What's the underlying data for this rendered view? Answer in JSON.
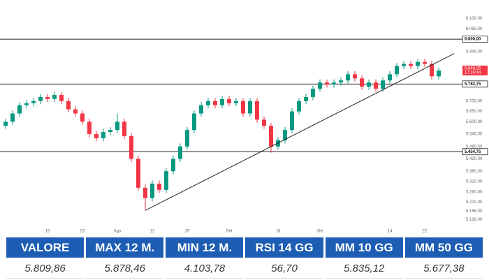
{
  "chart_data": {
    "type": "candlestick",
    "categories": [
      null,
      null,
      null,
      null,
      null,
      null,
      "15",
      null,
      null,
      null,
      null,
      "23",
      null,
      null,
      null,
      null,
      "Ago",
      null,
      null,
      null,
      null,
      "12",
      null,
      null,
      null,
      null,
      "20",
      null,
      null,
      null,
      null,
      null,
      "Set",
      null,
      null,
      null,
      null,
      null,
      null,
      "16",
      null,
      null,
      null,
      null,
      null,
      "Ott",
      null,
      null,
      null,
      null,
      null,
      null,
      null,
      null,
      null,
      "14",
      null,
      null,
      null,
      null,
      "22",
      null,
      null
    ],
    "open": [
      5580,
      5600,
      5640,
      5680,
      5690,
      5700,
      5720,
      5710,
      5730,
      5700,
      5660,
      5640,
      5600,
      5540,
      5520,
      5550,
      5560,
      5600,
      5530,
      5420,
      5280,
      5230,
      5300,
      5270,
      5360,
      5420,
      5480,
      5560,
      5640,
      5680,
      5700,
      5680,
      5710,
      5690,
      5700,
      5640,
      5700,
      5610,
      5580,
      5480,
      5510,
      5560,
      5650,
      5700,
      5720,
      5760,
      5790,
      5780,
      5790,
      5800,
      5830,
      5810,
      5770,
      5790,
      5760,
      5800,
      5830,
      5870,
      5880,
      5870,
      5890,
      5880,
      5820
    ],
    "high": [
      5615,
      5655,
      5695,
      5705,
      5715,
      5735,
      5735,
      5745,
      5745,
      5715,
      5675,
      5655,
      5615,
      5555,
      5565,
      5575,
      5640,
      5615,
      5545,
      5435,
      5295,
      5315,
      5315,
      5375,
      5435,
      5495,
      5575,
      5655,
      5695,
      5715,
      5715,
      5725,
      5725,
      5715,
      5715,
      5715,
      5715,
      5625,
      5595,
      5525,
      5575,
      5665,
      5715,
      5735,
      5775,
      5805,
      5805,
      5805,
      5815,
      5845,
      5845,
      5825,
      5805,
      5805,
      5815,
      5845,
      5885,
      5895,
      5895,
      5905,
      5905,
      5895,
      5863
    ],
    "low": [
      5565,
      5585,
      5625,
      5665,
      5675,
      5685,
      5695,
      5695,
      5685,
      5645,
      5625,
      5585,
      5525,
      5505,
      5505,
      5535,
      5545,
      5515,
      5405,
      5265,
      5170,
      5215,
      5255,
      5255,
      5345,
      5405,
      5465,
      5545,
      5625,
      5665,
      5665,
      5665,
      5675,
      5675,
      5625,
      5625,
      5595,
      5565,
      5450,
      5465,
      5495,
      5545,
      5635,
      5685,
      5705,
      5745,
      5765,
      5765,
      5775,
      5785,
      5795,
      5755,
      5755,
      5745,
      5745,
      5785,
      5815,
      5855,
      5855,
      5855,
      5865,
      5805,
      5805
    ],
    "close": [
      5600,
      5640,
      5680,
      5690,
      5700,
      5720,
      5710,
      5730,
      5700,
      5660,
      5640,
      5600,
      5540,
      5520,
      5550,
      5560,
      5600,
      5530,
      5420,
      5280,
      5230,
      5300,
      5270,
      5360,
      5420,
      5480,
      5560,
      5640,
      5680,
      5700,
      5680,
      5710,
      5690,
      5700,
      5640,
      5700,
      5610,
      5580,
      5480,
      5510,
      5560,
      5650,
      5700,
      5720,
      5760,
      5790,
      5780,
      5790,
      5800,
      5830,
      5810,
      5770,
      5790,
      5760,
      5800,
      5830,
      5870,
      5880,
      5870,
      5890,
      5880,
      5820,
      5848
    ],
    "up_color": "#089981",
    "down_color": "#f23645",
    "ylim": [
      5090,
      6190
    ],
    "yticks": [
      {
        "value": 6100,
        "label": "6.100,00"
      },
      {
        "value": 6050,
        "label": "6.050,00"
      },
      {
        "value": 5940,
        "label": "5.940,00"
      },
      {
        "value": 5700,
        "label": "5.700,00"
      },
      {
        "value": 5650,
        "label": "5.650,00"
      },
      {
        "value": 5600,
        "label": "5.600,00"
      },
      {
        "value": 5540,
        "label": "5.540,00"
      },
      {
        "value": 5480,
        "label": "5.480,00"
      },
      {
        "value": 5420,
        "label": "5.420,00"
      },
      {
        "value": 5360,
        "label": "5.360,00"
      },
      {
        "value": 5310,
        "label": "5.310,00"
      },
      {
        "value": 5260,
        "label": "5.260,00"
      },
      {
        "value": 5210,
        "label": "5.210,00"
      },
      {
        "value": 5166,
        "label": "5.166,00"
      },
      {
        "value": 5126,
        "label": "5.126,00"
      }
    ],
    "levels": [
      {
        "value": 6000,
        "label": "6.000,00"
      },
      {
        "value": 5782.75,
        "label": "5.782,75"
      },
      {
        "value": 5454.75,
        "label": "5.454,75"
      }
    ],
    "price_tag": {
      "value": 5848.25,
      "label": "5.848,25",
      "time": "17:16:44"
    },
    "trendline": [
      5170,
      5930
    ]
  },
  "table": {
    "headers": [
      "VALORE",
      "MAX 12 M.",
      "MIN 12 M.",
      "RSI 14 GG",
      "MM 10 GG",
      "MM 50 GG"
    ],
    "values": [
      "5.809,86",
      "5.878,46",
      "4.103,78",
      "56,70",
      "5.835,12",
      "5.677,38"
    ]
  }
}
